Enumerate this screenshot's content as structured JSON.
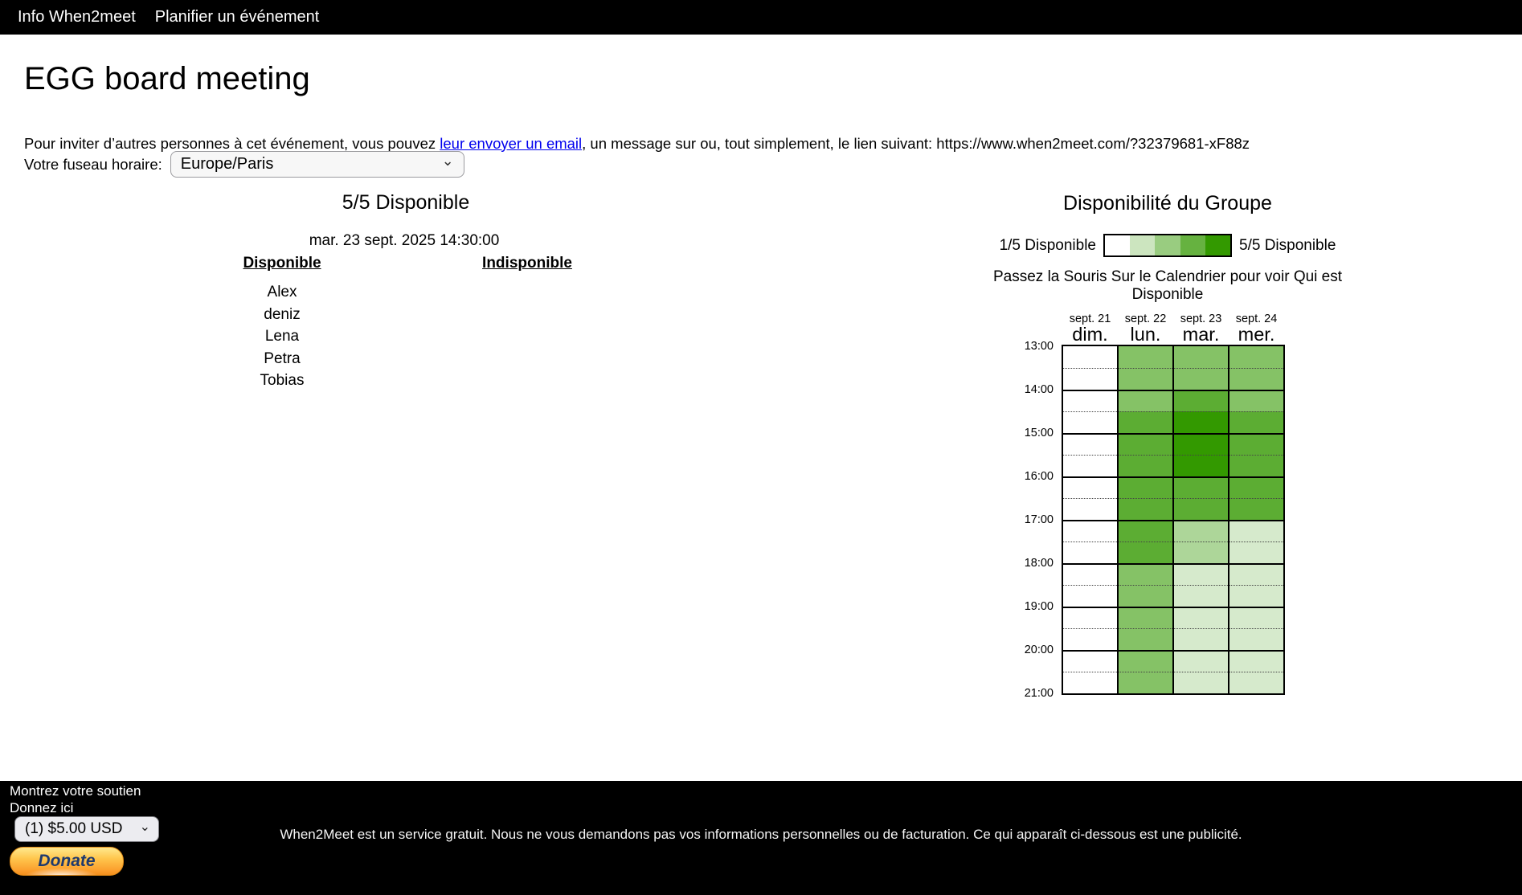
{
  "nav": {
    "items": [
      "Info When2meet",
      "Planifier un événement"
    ]
  },
  "header": {
    "title": "EGG board meeting",
    "invite_prefix": "Pour inviter d’autres personnes à cet événement, vous pouvez ",
    "invite_link": "leur envoyer un email",
    "invite_suffix": ", un message sur ou, tout simplement, le lien suivant: https://www.when2meet.com/?32379681-xF88z"
  },
  "timezone": {
    "label": "Votre fuseau horaire:",
    "value": "Europe/Paris"
  },
  "left_panel": {
    "heading": "5/5 Disponible",
    "datetime": "mar. 23 sept. 2025 14:30:00",
    "available_header": "Disponible",
    "unavailable_header": "Indisponible",
    "available": [
      "Alex",
      "deniz",
      "Lena",
      "Petra",
      "Tobias"
    ],
    "unavailable": []
  },
  "group_panel": {
    "heading": "Disponibilité du Groupe",
    "legend_min": "1/5 Disponible",
    "legend_max": "5/5 Disponible",
    "legend_colors": [
      "#FFFFFF",
      "#CCE5BF",
      "#99CC80",
      "#66B240",
      "#339900"
    ],
    "instruction": "Passez la Souris Sur le Calendrier pour voir Qui est Disponible"
  },
  "chart_data": {
    "type": "heatmap",
    "title": "Disponibilité du Groupe",
    "max_available": 5,
    "slot_minutes": 30,
    "time_start": "13:00",
    "time_end": "21:00",
    "hour_labels": [
      "13:00",
      "14:00",
      "15:00",
      "16:00",
      "17:00",
      "18:00",
      "19:00",
      "20:00",
      "21:00"
    ],
    "palette": {
      "0": "#FFFFFF",
      "1": "#D6EACC",
      "2": "#ADD699",
      "3": "#85C266",
      "4": "#5CAD33",
      "5": "#339900"
    },
    "days": [
      {
        "date": "sept. 21",
        "day": "dim.",
        "counts": [
          0,
          0,
          0,
          0,
          0,
          0,
          0,
          0,
          0,
          0,
          0,
          0,
          0,
          0,
          0,
          0
        ]
      },
      {
        "date": "sept. 22",
        "day": "lun.",
        "counts": [
          3,
          3,
          3,
          4,
          4,
          4,
          4,
          4,
          4,
          4,
          3,
          3,
          3,
          3,
          3,
          3
        ]
      },
      {
        "date": "sept. 23",
        "day": "mar.",
        "counts": [
          3,
          3,
          4,
          5,
          5,
          5,
          4,
          4,
          2,
          2,
          1,
          1,
          1,
          1,
          1,
          1
        ]
      },
      {
        "date": "sept. 24",
        "day": "mer.",
        "counts": [
          3,
          3,
          3,
          4,
          4,
          4,
          4,
          4,
          1,
          1,
          1,
          1,
          1,
          1,
          1,
          1
        ]
      }
    ]
  },
  "footer": {
    "support_line1": "Montrez votre soutien",
    "support_line2": "Donnez ici",
    "amount_value": "(1) $5.00 USD",
    "donate_label": "Donate",
    "service_note": "When2Meet est un service gratuit. Nous ne vous demandons pas vos informations personnelles ou de facturation. Ce qui apparaît ci-dessous est une publicité."
  }
}
